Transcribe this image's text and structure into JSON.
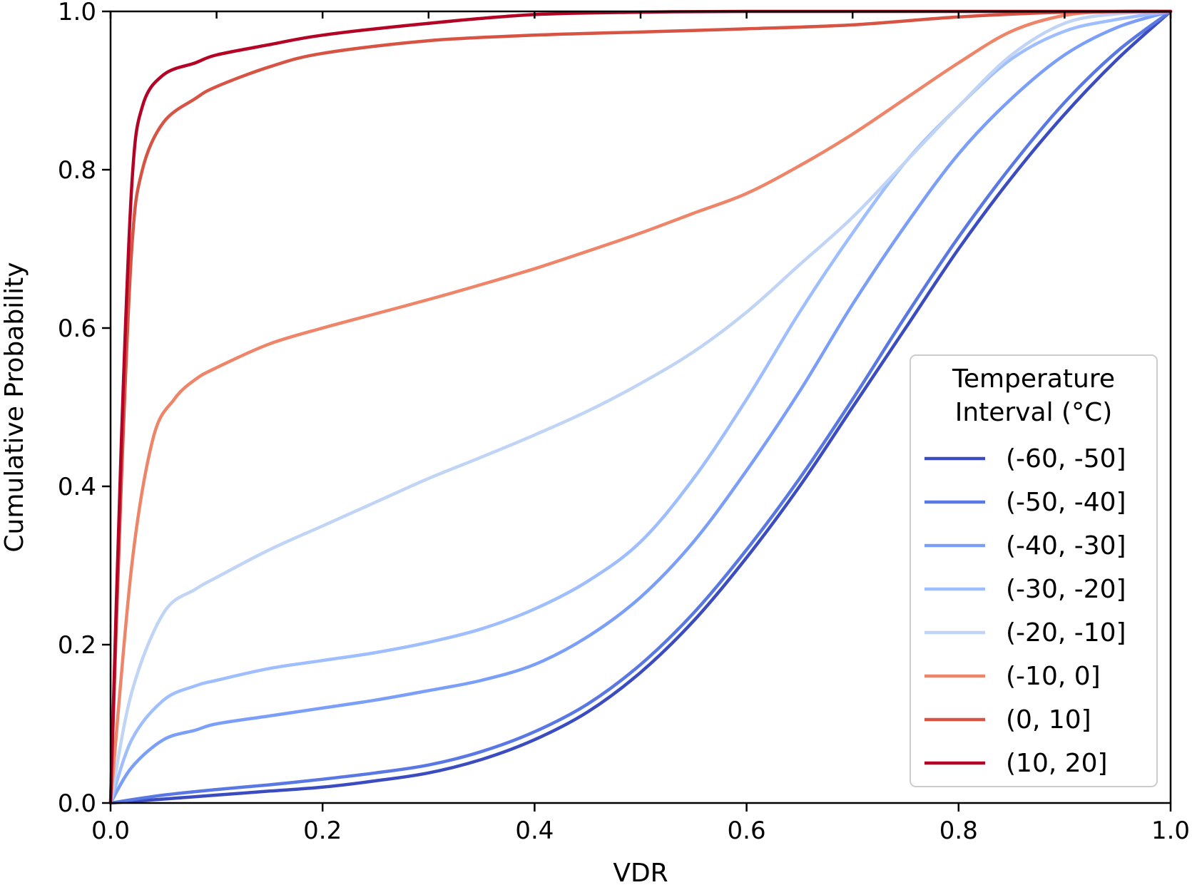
{
  "chart_data": {
    "type": "line",
    "title": "",
    "xlabel": "VDR",
    "ylabel": "Cumulative Probability",
    "xlim": [
      0.0,
      1.0
    ],
    "ylim": [
      0.0,
      1.0
    ],
    "x_ticks": [
      "0.0",
      "0.2",
      "0.4",
      "0.6",
      "0.8",
      "1.0"
    ],
    "y_ticks": [
      "0.0",
      "0.2",
      "0.4",
      "0.6",
      "0.8",
      "1.0"
    ],
    "grid": false,
    "legend": {
      "title_line1": "Temperature",
      "title_line2": "Interval (°C)",
      "placement": "lower-right"
    },
    "series": [
      {
        "name": "(-60, -50]",
        "color": "#3b4cc0",
        "x": [
          0,
          0.05,
          0.1,
          0.15,
          0.2,
          0.25,
          0.3,
          0.35,
          0.4,
          0.45,
          0.5,
          0.55,
          0.6,
          0.65,
          0.7,
          0.75,
          0.8,
          0.85,
          0.9,
          0.95,
          1.0
        ],
        "y": [
          0,
          0.005,
          0.01,
          0.015,
          0.02,
          0.028,
          0.038,
          0.055,
          0.08,
          0.115,
          0.165,
          0.23,
          0.31,
          0.4,
          0.5,
          0.6,
          0.7,
          0.79,
          0.87,
          0.94,
          1.0
        ]
      },
      {
        "name": "(-50, -40]",
        "color": "#5a78e4",
        "x": [
          0,
          0.05,
          0.1,
          0.15,
          0.2,
          0.25,
          0.3,
          0.35,
          0.4,
          0.45,
          0.5,
          0.55,
          0.6,
          0.65,
          0.7,
          0.75,
          0.8,
          0.85,
          0.9,
          0.95,
          1.0
        ],
        "y": [
          0,
          0.01,
          0.017,
          0.023,
          0.03,
          0.038,
          0.048,
          0.065,
          0.09,
          0.125,
          0.175,
          0.24,
          0.32,
          0.41,
          0.51,
          0.615,
          0.715,
          0.805,
          0.885,
          0.95,
          1.0
        ]
      },
      {
        "name": "(-40, -30]",
        "color": "#7b9ff9",
        "x": [
          0,
          0.02,
          0.05,
          0.08,
          0.1,
          0.15,
          0.2,
          0.25,
          0.3,
          0.35,
          0.4,
          0.45,
          0.5,
          0.55,
          0.6,
          0.65,
          0.7,
          0.75,
          0.8,
          0.85,
          0.9,
          0.95,
          1.0
        ],
        "y": [
          0,
          0.045,
          0.08,
          0.092,
          0.1,
          0.11,
          0.12,
          0.13,
          0.142,
          0.155,
          0.175,
          0.21,
          0.26,
          0.33,
          0.42,
          0.52,
          0.63,
          0.73,
          0.82,
          0.89,
          0.945,
          0.98,
          1.0
        ]
      },
      {
        "name": "(-30, -20]",
        "color": "#9ebeff",
        "x": [
          0,
          0.02,
          0.05,
          0.08,
          0.1,
          0.15,
          0.2,
          0.25,
          0.3,
          0.35,
          0.4,
          0.45,
          0.5,
          0.55,
          0.6,
          0.65,
          0.7,
          0.75,
          0.8,
          0.85,
          0.9,
          0.95,
          1.0
        ],
        "y": [
          0,
          0.08,
          0.13,
          0.148,
          0.155,
          0.17,
          0.18,
          0.19,
          0.203,
          0.22,
          0.245,
          0.28,
          0.33,
          0.41,
          0.51,
          0.62,
          0.72,
          0.81,
          0.88,
          0.94,
          0.975,
          0.99,
          1.0
        ]
      },
      {
        "name": "(-20, -10]",
        "color": "#c0d4f5",
        "x": [
          0,
          0.02,
          0.05,
          0.08,
          0.1,
          0.15,
          0.2,
          0.25,
          0.3,
          0.35,
          0.4,
          0.45,
          0.5,
          0.55,
          0.6,
          0.65,
          0.7,
          0.75,
          0.8,
          0.85,
          0.9,
          0.95,
          1.0
        ],
        "y": [
          0,
          0.14,
          0.24,
          0.27,
          0.285,
          0.32,
          0.35,
          0.38,
          0.41,
          0.437,
          0.465,
          0.495,
          0.53,
          0.57,
          0.62,
          0.68,
          0.74,
          0.81,
          0.88,
          0.945,
          0.985,
          0.997,
          1.0
        ]
      },
      {
        "name": "(-10, 0]",
        "color": "#ee8468",
        "x": [
          0,
          0.02,
          0.04,
          0.06,
          0.08,
          0.1,
          0.15,
          0.2,
          0.25,
          0.3,
          0.35,
          0.4,
          0.45,
          0.5,
          0.55,
          0.6,
          0.65,
          0.7,
          0.75,
          0.8,
          0.85,
          0.9,
          0.95,
          1.0
        ],
        "y": [
          0,
          0.3,
          0.46,
          0.51,
          0.535,
          0.55,
          0.58,
          0.6,
          0.618,
          0.636,
          0.655,
          0.675,
          0.697,
          0.72,
          0.745,
          0.77,
          0.805,
          0.845,
          0.89,
          0.935,
          0.975,
          0.995,
          1.0,
          1.0
        ]
      },
      {
        "name": "(0, 10]",
        "color": "#d75445",
        "x": [
          0,
          0.01,
          0.02,
          0.03,
          0.05,
          0.08,
          0.1,
          0.15,
          0.2,
          0.3,
          0.4,
          0.5,
          0.6,
          0.7,
          0.8,
          0.9,
          1.0
        ],
        "y": [
          0,
          0.4,
          0.7,
          0.8,
          0.86,
          0.89,
          0.905,
          0.93,
          0.947,
          0.963,
          0.97,
          0.974,
          0.978,
          0.983,
          0.993,
          0.999,
          1.0
        ]
      },
      {
        "name": "(10, 20]",
        "color": "#b40426",
        "x": [
          0,
          0.01,
          0.02,
          0.03,
          0.05,
          0.08,
          0.1,
          0.15,
          0.2,
          0.3,
          0.4,
          0.5,
          0.6,
          0.8,
          1.0
        ],
        "y": [
          0,
          0.45,
          0.78,
          0.88,
          0.92,
          0.935,
          0.945,
          0.958,
          0.97,
          0.985,
          0.996,
          0.999,
          1.0,
          1.0,
          1.0
        ]
      }
    ]
  }
}
